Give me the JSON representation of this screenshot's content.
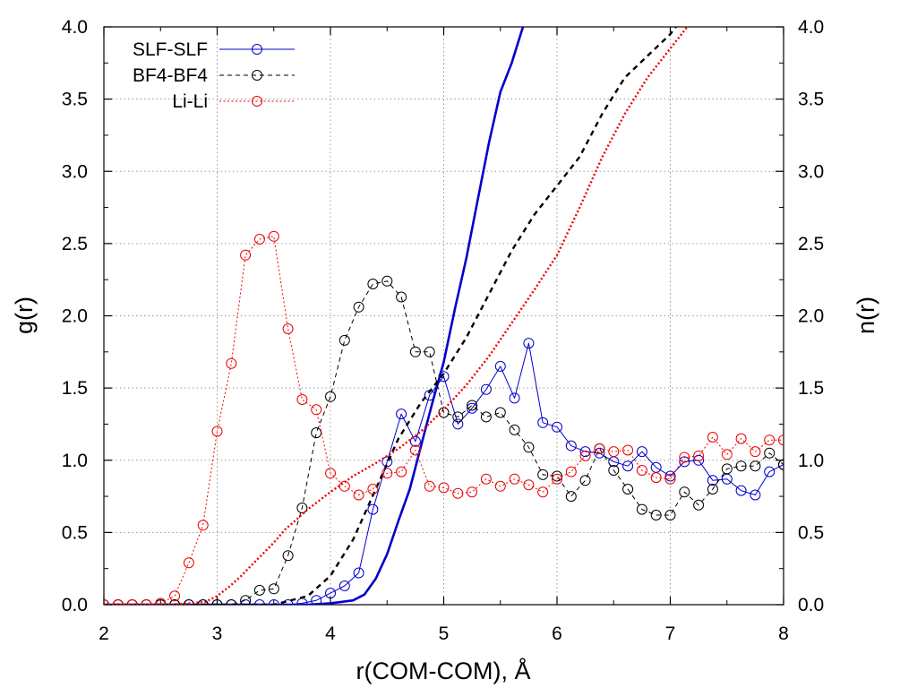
{
  "chart_data": {
    "type": "line",
    "xlabel": "r(COM-COM), Å",
    "ylabel": "g(r)",
    "y2label": "n(r)",
    "xlim": [
      2,
      8
    ],
    "ylim": [
      0,
      4
    ],
    "y2lim": [
      0,
      4
    ],
    "xticks": [
      "2",
      "3",
      "4",
      "5",
      "6",
      "7",
      "8"
    ],
    "yticks": [
      "0.0",
      "0.5",
      "1.0",
      "1.5",
      "2.0",
      "2.5",
      "3.0",
      "3.5",
      "4.0"
    ],
    "y2ticks": [
      "0.0",
      "0.5",
      "1.0",
      "1.5",
      "2.0",
      "2.5",
      "3.0",
      "3.5",
      "4.0"
    ],
    "grid": true,
    "legend_position": "top-left",
    "series": [
      {
        "name": "SLF-SLF",
        "color": "#0000cc",
        "line_style": "solid",
        "marker": "open-circle",
        "g": {
          "x": [
            2.0,
            2.125,
            2.25,
            2.375,
            2.5,
            2.625,
            2.75,
            2.875,
            3.0,
            3.125,
            3.25,
            3.375,
            3.5,
            3.625,
            3.75,
            3.875,
            4.0,
            4.125,
            4.25,
            4.375,
            4.5,
            4.625,
            4.75,
            4.875,
            5.0,
            5.125,
            5.25,
            5.375,
            5.5,
            5.625,
            5.75,
            5.875,
            6.0,
            6.125,
            6.25,
            6.375,
            6.5,
            6.625,
            6.75,
            6.875,
            7.0,
            7.125,
            7.25,
            7.375,
            7.5,
            7.625,
            7.75,
            7.875,
            8.0
          ],
          "y": [
            0.0,
            0.0,
            0.0,
            0.0,
            0.0,
            0.0,
            0.0,
            0.0,
            0.0,
            0.0,
            0.0,
            0.0,
            0.0,
            0.0,
            0.01,
            0.03,
            0.08,
            0.13,
            0.22,
            0.66,
            0.99,
            1.32,
            1.13,
            1.45,
            1.58,
            1.25,
            1.36,
            1.49,
            1.65,
            1.43,
            1.81,
            1.26,
            1.23,
            1.1,
            1.06,
            1.05,
            0.99,
            0.96,
            1.06,
            0.95,
            0.89,
            0.99,
            1.0,
            0.86,
            0.87,
            0.79,
            0.76,
            0.92,
            0.97
          ]
        },
        "n": {
          "x": [
            2.0,
            3.0,
            3.5,
            3.8,
            4.0,
            4.2,
            4.3,
            4.4,
            4.5,
            4.6,
            4.7,
            4.8,
            4.9,
            5.0,
            5.1,
            5.2,
            5.3,
            5.4,
            5.5,
            5.6,
            5.7,
            5.75,
            5.8,
            5.9
          ],
          "y": [
            0.0,
            0.0,
            0.0,
            0.0,
            0.01,
            0.03,
            0.07,
            0.18,
            0.35,
            0.58,
            0.8,
            1.1,
            1.4,
            1.68,
            2.05,
            2.4,
            2.8,
            3.2,
            3.55,
            3.75,
            4.0,
            4.15,
            4.3,
            4.5
          ]
        }
      },
      {
        "name": "BF4-BF4",
        "color": "#000000",
        "line_style": "dashed",
        "marker": "open-circle",
        "g": {
          "x": [
            2.0,
            2.125,
            2.25,
            2.375,
            2.5,
            2.625,
            2.75,
            2.875,
            3.0,
            3.125,
            3.25,
            3.375,
            3.5,
            3.625,
            3.75,
            3.875,
            4.0,
            4.125,
            4.25,
            4.375,
            4.5,
            4.625,
            4.75,
            4.875,
            5.0,
            5.125,
            5.25,
            5.375,
            5.5,
            5.625,
            5.75,
            5.875,
            6.0,
            6.125,
            6.25,
            6.375,
            6.5,
            6.625,
            6.75,
            6.875,
            7.0,
            7.125,
            7.25,
            7.375,
            7.5,
            7.625,
            7.75,
            7.875,
            8.0
          ],
          "y": [
            0.0,
            0.0,
            0.0,
            0.0,
            0.0,
            0.0,
            0.0,
            0.0,
            0.0,
            0.0,
            0.03,
            0.1,
            0.11,
            0.34,
            0.67,
            1.19,
            1.44,
            1.83,
            2.06,
            2.22,
            2.24,
            2.13,
            1.75,
            1.75,
            1.33,
            1.3,
            1.38,
            1.3,
            1.33,
            1.21,
            1.09,
            0.9,
            0.89,
            0.75,
            0.86,
            1.08,
            0.93,
            0.8,
            0.66,
            0.62,
            0.62,
            0.78,
            0.69,
            0.8,
            0.94,
            0.96,
            0.96,
            1.05,
            0.97
          ]
        },
        "n": {
          "x": [
            2.0,
            3.0,
            3.5,
            3.8,
            4.0,
            4.2,
            4.4,
            4.6,
            4.8,
            5.0,
            5.2,
            5.4,
            5.6,
            5.8,
            6.0,
            6.2,
            6.4,
            6.6,
            6.8,
            7.0,
            7.05
          ],
          "y": [
            0.0,
            0.0,
            0.0,
            0.06,
            0.2,
            0.45,
            0.8,
            1.15,
            1.4,
            1.6,
            1.85,
            2.15,
            2.45,
            2.7,
            2.9,
            3.1,
            3.4,
            3.65,
            3.8,
            3.95,
            4.0
          ]
        }
      },
      {
        "name": "Li-Li",
        "color": "#ee0000",
        "line_style": "dotted",
        "marker": "open-circle",
        "g": {
          "x": [
            2.0,
            2.125,
            2.25,
            2.375,
            2.5,
            2.625,
            2.75,
            2.875,
            3.0,
            3.125,
            3.25,
            3.375,
            3.5,
            3.625,
            3.75,
            3.875,
            4.0,
            4.125,
            4.25,
            4.375,
            4.5,
            4.625,
            4.75,
            4.875,
            5.0,
            5.125,
            5.25,
            5.375,
            5.5,
            5.625,
            5.75,
            5.875,
            6.0,
            6.125,
            6.25,
            6.375,
            6.5,
            6.625,
            6.75,
            6.875,
            7.0,
            7.125,
            7.25,
            7.375,
            7.5,
            7.625,
            7.75,
            7.875,
            8.0
          ],
          "y": [
            0.0,
            0.0,
            0.0,
            0.0,
            0.01,
            0.06,
            0.29,
            0.55,
            1.2,
            1.67,
            2.42,
            2.53,
            2.55,
            1.91,
            1.42,
            1.35,
            0.91,
            0.82,
            0.76,
            0.8,
            0.91,
            0.92,
            1.07,
            0.82,
            0.81,
            0.77,
            0.78,
            0.87,
            0.82,
            0.87,
            0.83,
            0.78,
            0.87,
            0.92,
            1.03,
            1.08,
            1.06,
            1.07,
            0.93,
            0.88,
            0.87,
            1.02,
            1.03,
            1.16,
            1.04,
            1.15,
            1.06,
            1.14,
            1.14
          ]
        },
        "n": {
          "x": [
            2.0,
            2.6,
            2.9,
            3.0,
            3.1,
            3.2,
            3.3,
            3.4,
            3.5,
            3.6,
            3.7,
            3.8,
            4.0,
            4.2,
            4.4,
            4.6,
            4.8,
            5.0,
            5.2,
            5.4,
            5.6,
            5.8,
            6.0,
            6.2,
            6.4,
            6.6,
            6.8,
            7.0,
            7.1,
            7.2
          ],
          "y": [
            0.0,
            0.0,
            0.02,
            0.06,
            0.12,
            0.19,
            0.27,
            0.35,
            0.43,
            0.52,
            0.59,
            0.66,
            0.78,
            0.89,
            0.98,
            1.08,
            1.2,
            1.35,
            1.52,
            1.72,
            1.95,
            2.18,
            2.42,
            2.75,
            3.1,
            3.4,
            3.65,
            3.85,
            3.95,
            4.05
          ]
        }
      }
    ]
  }
}
